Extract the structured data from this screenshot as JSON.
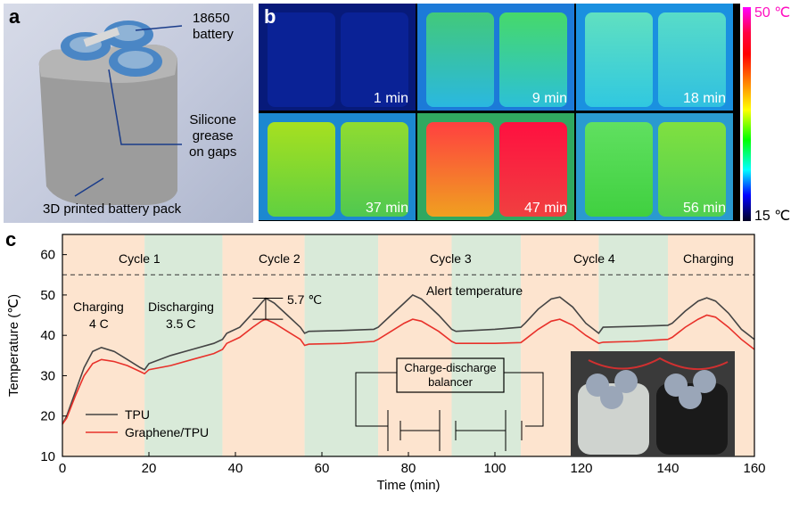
{
  "panel_a": {
    "letter": "a",
    "battery_label": "18650\nbattery",
    "grease_label": "Silicone\ngrease\non gaps",
    "pack_label": "3D printed battery pack"
  },
  "panel_b": {
    "letter": "b",
    "times": [
      "1 min",
      "9 min",
      "18 min",
      "37 min",
      "47 min",
      "56 min"
    ],
    "scale_max": "50 ℃",
    "scale_min": "15 ℃",
    "colors": {
      "cold": "#0a1a8a",
      "warm": "#39d38a",
      "hot": "#ff2040"
    }
  },
  "panel_c": {
    "letter": "c",
    "cycle_labels": [
      "Cycle 1",
      "Cycle 2",
      "Cycle 3",
      "Cycle 4",
      "Charging"
    ],
    "charging_text": "Charging",
    "charging_rate": "4 C",
    "discharging_text": "Discharging",
    "discharging_rate": "3.5 C",
    "delta_label": "5.7 ℃",
    "alert_label": "Alert temperature",
    "balancer_label": "Charge-discharge\nbalancer"
  },
  "chart_data": {
    "type": "line",
    "xlabel": "Time (min)",
    "ylabel": "Temperature (℃)",
    "xlim": [
      0,
      160
    ],
    "ylim": [
      10,
      65
    ],
    "xticks": [
      0,
      20,
      40,
      60,
      80,
      100,
      120,
      140,
      160
    ],
    "yticks": [
      10,
      20,
      30,
      40,
      50,
      60
    ],
    "alert_temperature": 55,
    "regions": [
      {
        "from": 0,
        "to": 19,
        "kind": "charging",
        "color": "#fde4cf"
      },
      {
        "from": 19,
        "to": 37,
        "kind": "discharging",
        "color": "#d9ead9"
      },
      {
        "from": 37,
        "to": 56,
        "kind": "charging",
        "color": "#fde4cf"
      },
      {
        "from": 56,
        "to": 73,
        "kind": "discharging",
        "color": "#d9ead9"
      },
      {
        "from": 73,
        "to": 90,
        "kind": "charging",
        "color": "#fde4cf"
      },
      {
        "from": 90,
        "to": 106,
        "kind": "discharging",
        "color": "#d9ead9"
      },
      {
        "from": 106,
        "to": 124,
        "kind": "charging",
        "color": "#fde4cf"
      },
      {
        "from": 124,
        "to": 140,
        "kind": "discharging",
        "color": "#d9ead9"
      },
      {
        "from": 140,
        "to": 160,
        "kind": "charging",
        "color": "#fde4cf"
      }
    ],
    "legend": "bottom-left",
    "series": [
      {
        "name": "TPU",
        "color": "#444444",
        "points": [
          [
            0,
            18
          ],
          [
            1,
            20
          ],
          [
            3,
            26
          ],
          [
            5,
            32
          ],
          [
            7,
            36
          ],
          [
            9,
            37
          ],
          [
            12,
            36
          ],
          [
            15,
            34
          ],
          [
            18,
            32
          ],
          [
            19,
            31.5
          ],
          [
            20,
            33
          ],
          [
            25,
            35
          ],
          [
            30,
            36.5
          ],
          [
            35,
            38
          ],
          [
            37,
            39
          ],
          [
            38,
            40.5
          ],
          [
            41,
            42
          ],
          [
            44,
            45.5
          ],
          [
            46,
            48
          ],
          [
            47,
            49.2
          ],
          [
            49,
            48
          ],
          [
            52,
            45
          ],
          [
            55,
            42
          ],
          [
            56,
            40.5
          ],
          [
            57,
            41
          ],
          [
            65,
            41.2
          ],
          [
            72,
            41.5
          ],
          [
            73,
            42
          ],
          [
            76,
            45
          ],
          [
            79,
            48
          ],
          [
            81,
            50
          ],
          [
            83,
            49
          ],
          [
            87,
            45
          ],
          [
            90,
            41.5
          ],
          [
            91,
            41
          ],
          [
            100,
            41.5
          ],
          [
            106,
            42
          ],
          [
            107,
            43
          ],
          [
            110,
            46.5
          ],
          [
            113,
            49
          ],
          [
            115,
            49.5
          ],
          [
            118,
            47
          ],
          [
            121,
            43
          ],
          [
            124,
            40.5
          ],
          [
            125,
            42
          ],
          [
            132,
            42.2
          ],
          [
            140,
            42.5
          ],
          [
            141,
            43
          ],
          [
            144,
            46
          ],
          [
            147,
            48.5
          ],
          [
            149,
            49.3
          ],
          [
            151,
            48.5
          ],
          [
            154,
            45.5
          ],
          [
            157,
            41.5
          ],
          [
            160,
            39
          ]
        ]
      },
      {
        "name": "Graphene/TPU",
        "color": "#e8312a",
        "points": [
          [
            0,
            18
          ],
          [
            1,
            19.5
          ],
          [
            3,
            25
          ],
          [
            5,
            30
          ],
          [
            7,
            33
          ],
          [
            9,
            34
          ],
          [
            12,
            33.5
          ],
          [
            15,
            32.5
          ],
          [
            18,
            31
          ],
          [
            19,
            30.5
          ],
          [
            20,
            31.5
          ],
          [
            25,
            32.5
          ],
          [
            30,
            34
          ],
          [
            35,
            35.5
          ],
          [
            37,
            36.5
          ],
          [
            38,
            38
          ],
          [
            41,
            39.5
          ],
          [
            44,
            42
          ],
          [
            46,
            43.5
          ],
          [
            47,
            44
          ],
          [
            49,
            43
          ],
          [
            52,
            41
          ],
          [
            55,
            39
          ],
          [
            56,
            37.5
          ],
          [
            57,
            37.8
          ],
          [
            65,
            38
          ],
          [
            72,
            38.5
          ],
          [
            73,
            39
          ],
          [
            76,
            41
          ],
          [
            79,
            43
          ],
          [
            81,
            44
          ],
          [
            83,
            43.5
          ],
          [
            87,
            41
          ],
          [
            90,
            38.5
          ],
          [
            91,
            38
          ],
          [
            100,
            38
          ],
          [
            106,
            38.2
          ],
          [
            107,
            39
          ],
          [
            110,
            41.5
          ],
          [
            113,
            43.5
          ],
          [
            115,
            44
          ],
          [
            118,
            42.5
          ],
          [
            121,
            40
          ],
          [
            124,
            38
          ],
          [
            125,
            38.3
          ],
          [
            132,
            38.5
          ],
          [
            140,
            39
          ],
          [
            141,
            39.5
          ],
          [
            144,
            42
          ],
          [
            147,
            44
          ],
          [
            149,
            45
          ],
          [
            151,
            44.5
          ],
          [
            154,
            42
          ],
          [
            157,
            39
          ],
          [
            160,
            36.5
          ]
        ]
      }
    ]
  }
}
